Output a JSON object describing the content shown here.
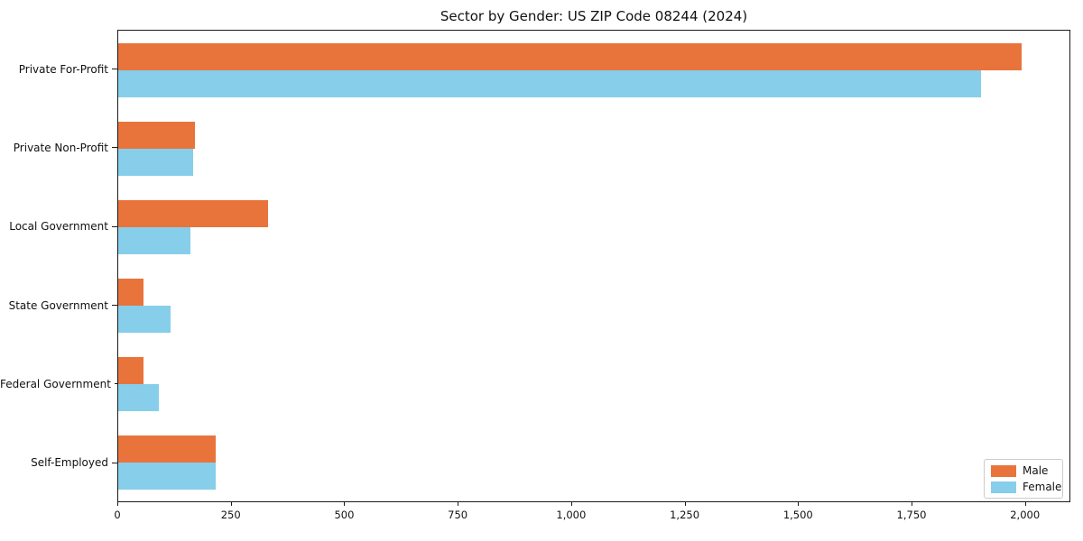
{
  "chart_data": {
    "type": "bar",
    "orientation": "horizontal",
    "title": "Sector by Gender: US ZIP Code 08244 (2024)",
    "categories": [
      "Private For-Profit",
      "Private Non-Profit",
      "Local Government",
      "State Government",
      "Federal Government",
      "Self-Employed"
    ],
    "series": [
      {
        "name": "Male",
        "color": "#e8743c",
        "values": [
          1995,
          170,
          330,
          55,
          55,
          215
        ]
      },
      {
        "name": "Female",
        "color": "#87ceeb",
        "values": [
          1905,
          165,
          160,
          115,
          90,
          215
        ]
      }
    ],
    "xlabel": "",
    "ylabel": "",
    "xlim": [
      0,
      2100
    ],
    "xticks": [
      0,
      250,
      500,
      750,
      1000,
      1250,
      1500,
      1750,
      2000
    ],
    "xtick_labels": [
      "0",
      "250",
      "500",
      "750",
      "1,000",
      "1,250",
      "1,500",
      "1,750",
      "2,000"
    ],
    "grid": false,
    "legend_position": "lower right",
    "background_color": "#ffffff"
  }
}
